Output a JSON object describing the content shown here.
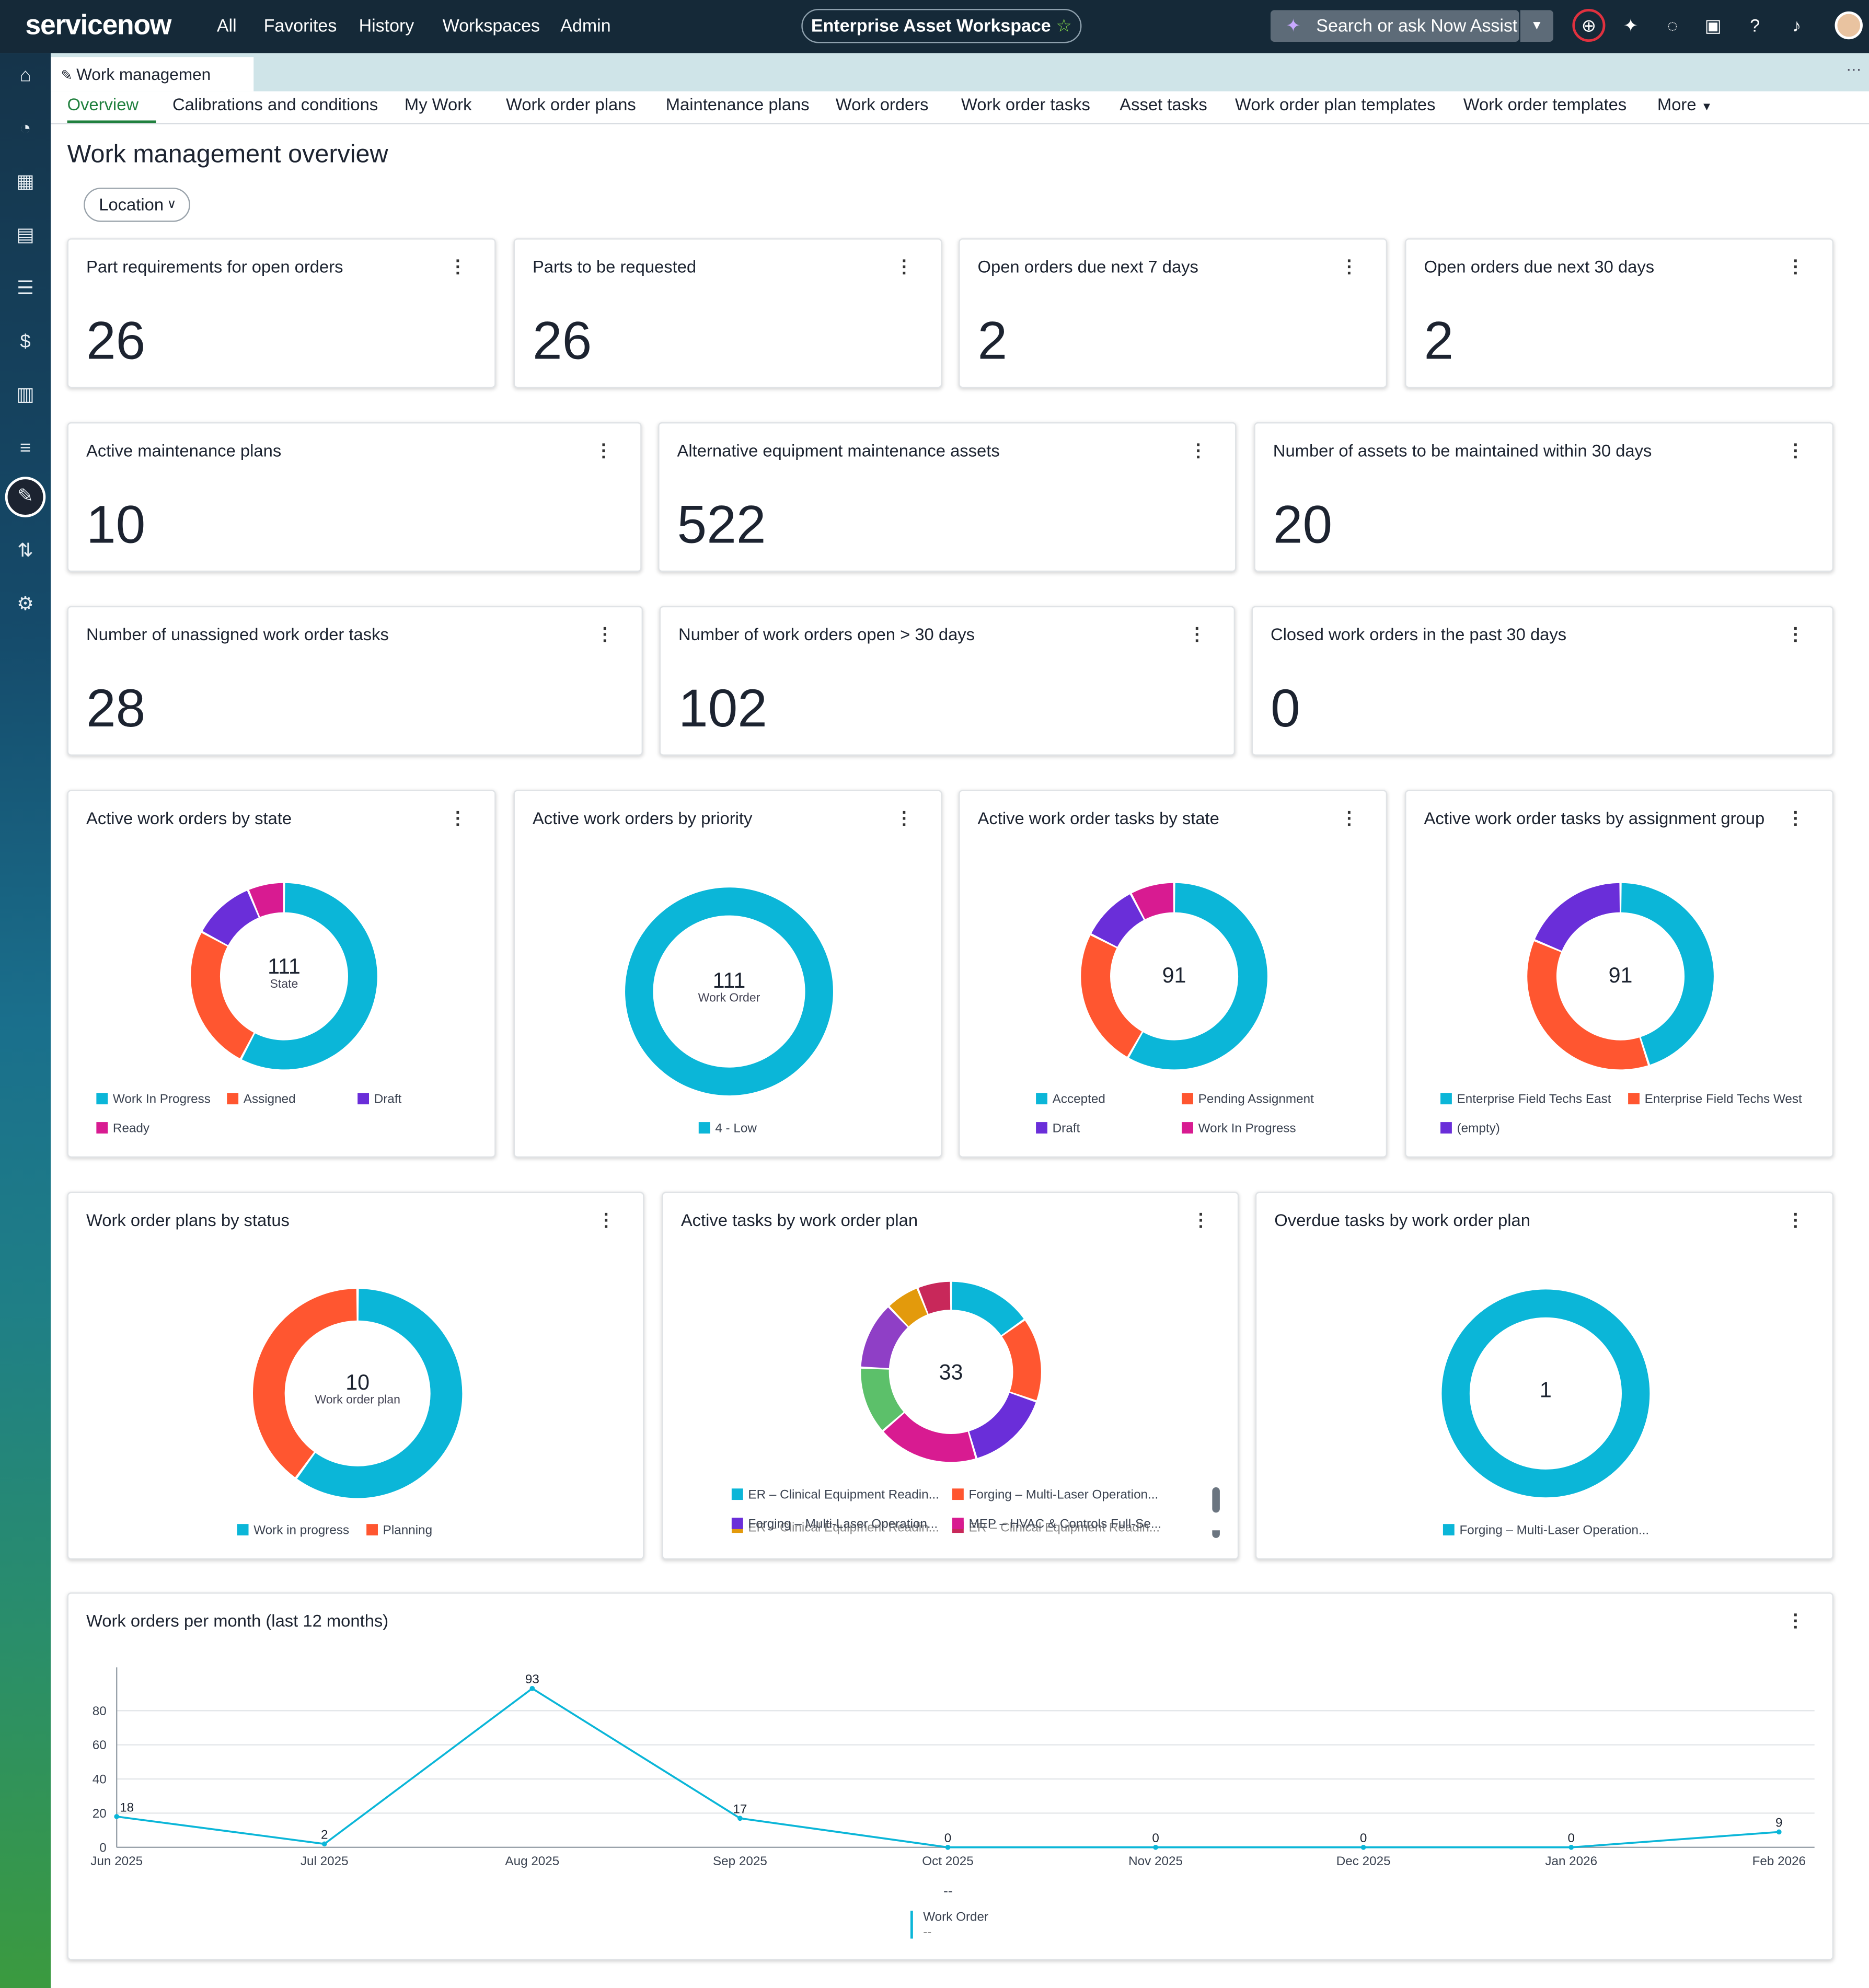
{
  "topnav": {
    "logo": "servicenow",
    "items": [
      "All",
      "Favorites",
      "History",
      "Workspaces",
      "Admin"
    ],
    "workspace_pill": "Enterprise Asset Workspace",
    "search_placeholder": "Search or ask Now Assist"
  },
  "tabs": {
    "workspace_tab": "Work managemen",
    "subnav": [
      "Overview",
      "Calibrations and conditions",
      "My Work",
      "Work order plans",
      "Maintenance plans",
      "Work orders",
      "Work order tasks",
      "Asset tasks",
      "Work order plan templates",
      "Work order templates",
      "More"
    ]
  },
  "page": {
    "title": "Work management overview",
    "location_filter": "Location"
  },
  "kpis": [
    {
      "title": "Part requirements for open orders",
      "value": "26"
    },
    {
      "title": "Parts to be requested",
      "value": "26"
    },
    {
      "title": "Open orders due next 7 days",
      "value": "2"
    },
    {
      "title": "Open orders due next 30 days",
      "value": "2"
    },
    {
      "title": "Active maintenance plans",
      "value": "10"
    },
    {
      "title": "Alternative equipment maintenance assets",
      "value": "522"
    },
    {
      "title": "Number of assets to be maintained within 30 days",
      "value": "20"
    },
    {
      "title": "Number of unassigned work order tasks",
      "value": "28"
    },
    {
      "title": "Number of work orders open > 30 days",
      "value": "102"
    },
    {
      "title": "Closed work orders in the past 30 days",
      "value": "0"
    }
  ],
  "colors": {
    "cyan": "#0bb6d8",
    "orange": "#ff5630",
    "purple": "#6a2ed9",
    "magenta": "#d81b91",
    "green": "#5cc06a",
    "violet": "#8f3fc6",
    "amber": "#e39a0c",
    "crimson": "#c8285a",
    "nav_bg": "#152938",
    "accent_green": "#20803e"
  },
  "chart_data": [
    {
      "type": "pie",
      "title": "Active work orders by state",
      "center_value": "111",
      "center_label": "State",
      "slices": [
        {
          "label": "Work In Progress",
          "value": 64,
          "color": "#0bb6d8"
        },
        {
          "label": "Assigned",
          "value": 28,
          "color": "#ff5630"
        },
        {
          "label": "Draft",
          "value": 12,
          "color": "#6a2ed9"
        },
        {
          "label": "Ready",
          "value": 7,
          "color": "#d81b91"
        }
      ]
    },
    {
      "type": "pie",
      "title": "Active work orders by priority",
      "center_value": "111",
      "center_label": "Work Order",
      "slices": [
        {
          "label": "4 - Low",
          "value": 111,
          "color": "#0bb6d8"
        }
      ]
    },
    {
      "type": "pie",
      "title": "Active work order tasks by state",
      "center_value": "91",
      "center_label": "",
      "slices": [
        {
          "label": "Accepted",
          "value": 53,
          "color": "#0bb6d8"
        },
        {
          "label": "Pending Assignment",
          "value": 22,
          "color": "#ff5630"
        },
        {
          "label": "Draft",
          "value": 9,
          "color": "#6a2ed9"
        },
        {
          "label": "Work In Progress",
          "value": 7,
          "color": "#d81b91"
        }
      ]
    },
    {
      "type": "pie",
      "title": "Active work order tasks by assignment group",
      "center_value": "91",
      "center_label": "",
      "slices": [
        {
          "label": "Enterprise Field Techs East",
          "value": 41,
          "color": "#0bb6d8"
        },
        {
          "label": "Enterprise Field Techs West",
          "value": 33,
          "color": "#ff5630"
        },
        {
          "label": "(empty)",
          "value": 17,
          "color": "#6a2ed9"
        }
      ]
    },
    {
      "type": "pie",
      "title": "Work order plans by status",
      "center_value": "10",
      "center_label": "Work order plan",
      "slices": [
        {
          "label": "Work in progress",
          "value": 6,
          "color": "#0bb6d8"
        },
        {
          "label": "Planning",
          "value": 4,
          "color": "#ff5630"
        }
      ]
    },
    {
      "type": "pie",
      "title": "Active tasks by work order plan",
      "center_value": "33",
      "center_label": "",
      "slices": [
        {
          "label": "ER – Clinical Equipment Readin...",
          "value": 5,
          "color": "#0bb6d8"
        },
        {
          "label": "Forging – Multi-Laser Operation...",
          "value": 5,
          "color": "#ff5630"
        },
        {
          "label": "Forging – Multi-Laser Operation...",
          "value": 5,
          "color": "#6a2ed9"
        },
        {
          "label": "MEP – HVAC & Controls Full-Se...",
          "value": 6,
          "color": "#d81b91"
        },
        {
          "label": "",
          "value": 4,
          "color": "#5cc06a"
        },
        {
          "label": "",
          "value": 4,
          "color": "#8f3fc6"
        },
        {
          "label": "",
          "value": 2,
          "color": "#e39a0c"
        },
        {
          "label": "",
          "value": 2,
          "color": "#c8285a"
        }
      ],
      "legend_overflow": [
        "ER – Clinical Equipment Readin...",
        "ER – Clinical Equipment Readin..."
      ]
    },
    {
      "type": "pie",
      "title": "Overdue tasks by work order plan",
      "center_value": "1",
      "center_label": "",
      "slices": [
        {
          "label": "Forging – Multi-Laser Operation...",
          "value": 1,
          "color": "#0bb6d8"
        }
      ]
    },
    {
      "type": "line",
      "title": "Work orders per month (last 12 months)",
      "x": [
        "Jun 2025",
        "Jul 2025",
        "Aug 2025",
        "Sep 2025",
        "Oct 2025",
        "Nov 2025",
        "Dec 2025",
        "Jan 2026",
        "Feb 2026"
      ],
      "series": [
        {
          "name": "Work Order",
          "values": [
            18,
            2,
            93,
            17,
            0,
            0,
            0,
            0,
            9
          ],
          "color": "#0bb6d8"
        }
      ],
      "yticks": [
        0,
        20,
        40,
        60,
        80
      ],
      "ylim": [
        0,
        95
      ],
      "legend_placeholder": "--",
      "legend_sub": "--",
      "grid": true
    }
  ]
}
